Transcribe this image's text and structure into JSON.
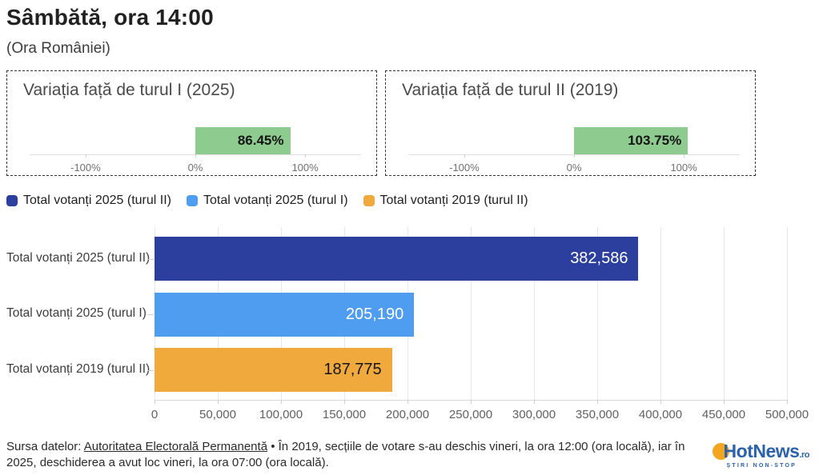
{
  "header": {
    "title": "Sâmbătă, ora 14:00",
    "subtitle": "(Ora României)"
  },
  "legend": [
    {
      "label": "Total votanți 2025 (turul II)",
      "color": "#2c3f9e"
    },
    {
      "label": "Total votanți 2025 (turul I)",
      "color": "#4f9df0"
    },
    {
      "label": "Total votanți 2019 (turul II)",
      "color": "#f0a93c"
    }
  ],
  "chart_data": [
    {
      "type": "bar",
      "orientation": "horizontal",
      "title": "Variația față de turul I (2025)",
      "categories": [
        "Variația față de turul I"
      ],
      "values": [
        86.45
      ],
      "value_labels": [
        "86.45%"
      ],
      "bar_color": "#8ecb8e",
      "xlim": [
        -151,
        151
      ],
      "x_ticks": [
        -100,
        0,
        100
      ],
      "x_tick_labels": [
        "-100%",
        "0%",
        "100%"
      ],
      "grid": false
    },
    {
      "type": "bar",
      "orientation": "horizontal",
      "title": "Variația față de turul II (2019)",
      "categories": [
        "Variația față de turul II"
      ],
      "values": [
        103.75
      ],
      "value_labels": [
        "103.75%"
      ],
      "bar_color": "#8ecb8e",
      "xlim": [
        -151,
        151
      ],
      "x_ticks": [
        -100,
        0,
        100
      ],
      "x_tick_labels": [
        "-100%",
        "0%",
        "100%"
      ],
      "grid": false
    },
    {
      "type": "bar",
      "orientation": "horizontal",
      "title": "",
      "categories": [
        "Total votanți 2025 (turul II)",
        "Total votanți 2025 (turul I)",
        "Total votanți 2019 (turul II)"
      ],
      "values": [
        382586,
        205190,
        187775
      ],
      "value_labels": [
        "382,586",
        "205,190",
        "187,775"
      ],
      "colors": [
        "#2c3f9e",
        "#4f9df0",
        "#f0a93c"
      ],
      "value_label_colors": [
        "#ffffff",
        "#ffffff",
        "#141414"
      ],
      "xlim": [
        0,
        500000
      ],
      "x_ticks": [
        0,
        50000,
        100000,
        150000,
        200000,
        250000,
        300000,
        350000,
        400000,
        450000,
        500000
      ],
      "x_tick_labels": [
        "0",
        "50,000",
        "100,000",
        "150,000",
        "200,000",
        "250,000",
        "300,000",
        "350,000",
        "400,000",
        "450,000",
        "500,000"
      ],
      "grid": true,
      "legend_position": "top"
    }
  ],
  "footer": {
    "source_prefix": "Sursa datelor: ",
    "source_link": "Autoritatea Electorală Permanentă",
    "separator": " • ",
    "note": "În 2019, secțiile de votare s-au deschis vineri, la ora 12:00 (ora locală), iar în 2025, deschiderea a avut loc vineri, la ora 07:00 (ora locală)."
  },
  "logo": {
    "brand": "HotNews",
    "tld": ".ro",
    "tagline": "ȘTIRI NON-STOP"
  }
}
